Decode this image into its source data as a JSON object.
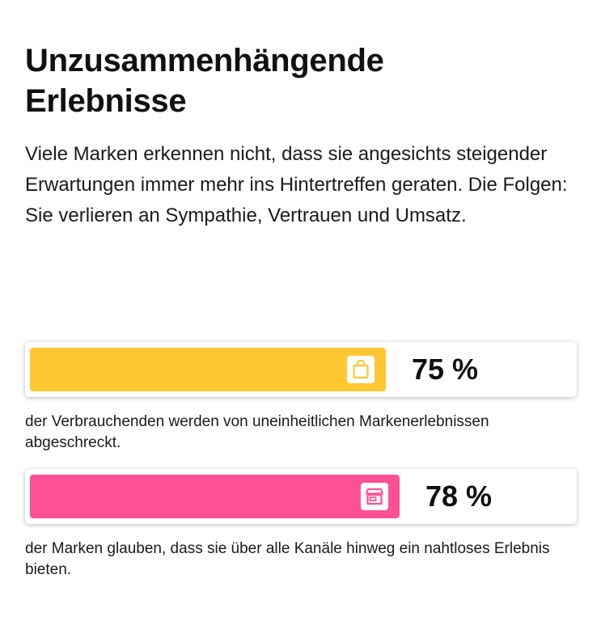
{
  "title": "Unzusammenhängende Erlebnisse",
  "intro": "Viele Marken erkennen nicht, dass sie angesichts steigender Erwartungen immer mehr ins Hintertreffen geraten. Die Folgen: Sie verlieren an Sympathie, Vertrauen und Umsatz.",
  "chart_data": {
    "type": "bar",
    "series": [
      {
        "value": 75,
        "label": "75 %",
        "caption": "der Verbrauchenden werden von uneinheitlichen Markenerlebnissen abgeschreckt.",
        "color": "#FFC832",
        "icon": "shopping-bag-icon"
      },
      {
        "value": 78,
        "label": "78 %",
        "caption": "der Marken glauben, dass sie über alle Kanäle hinweg ein nahtloses Erlebnis bieten.",
        "color": "#FF5096",
        "icon": "storefront-icon"
      }
    ],
    "ylim": [
      0,
      100
    ]
  }
}
